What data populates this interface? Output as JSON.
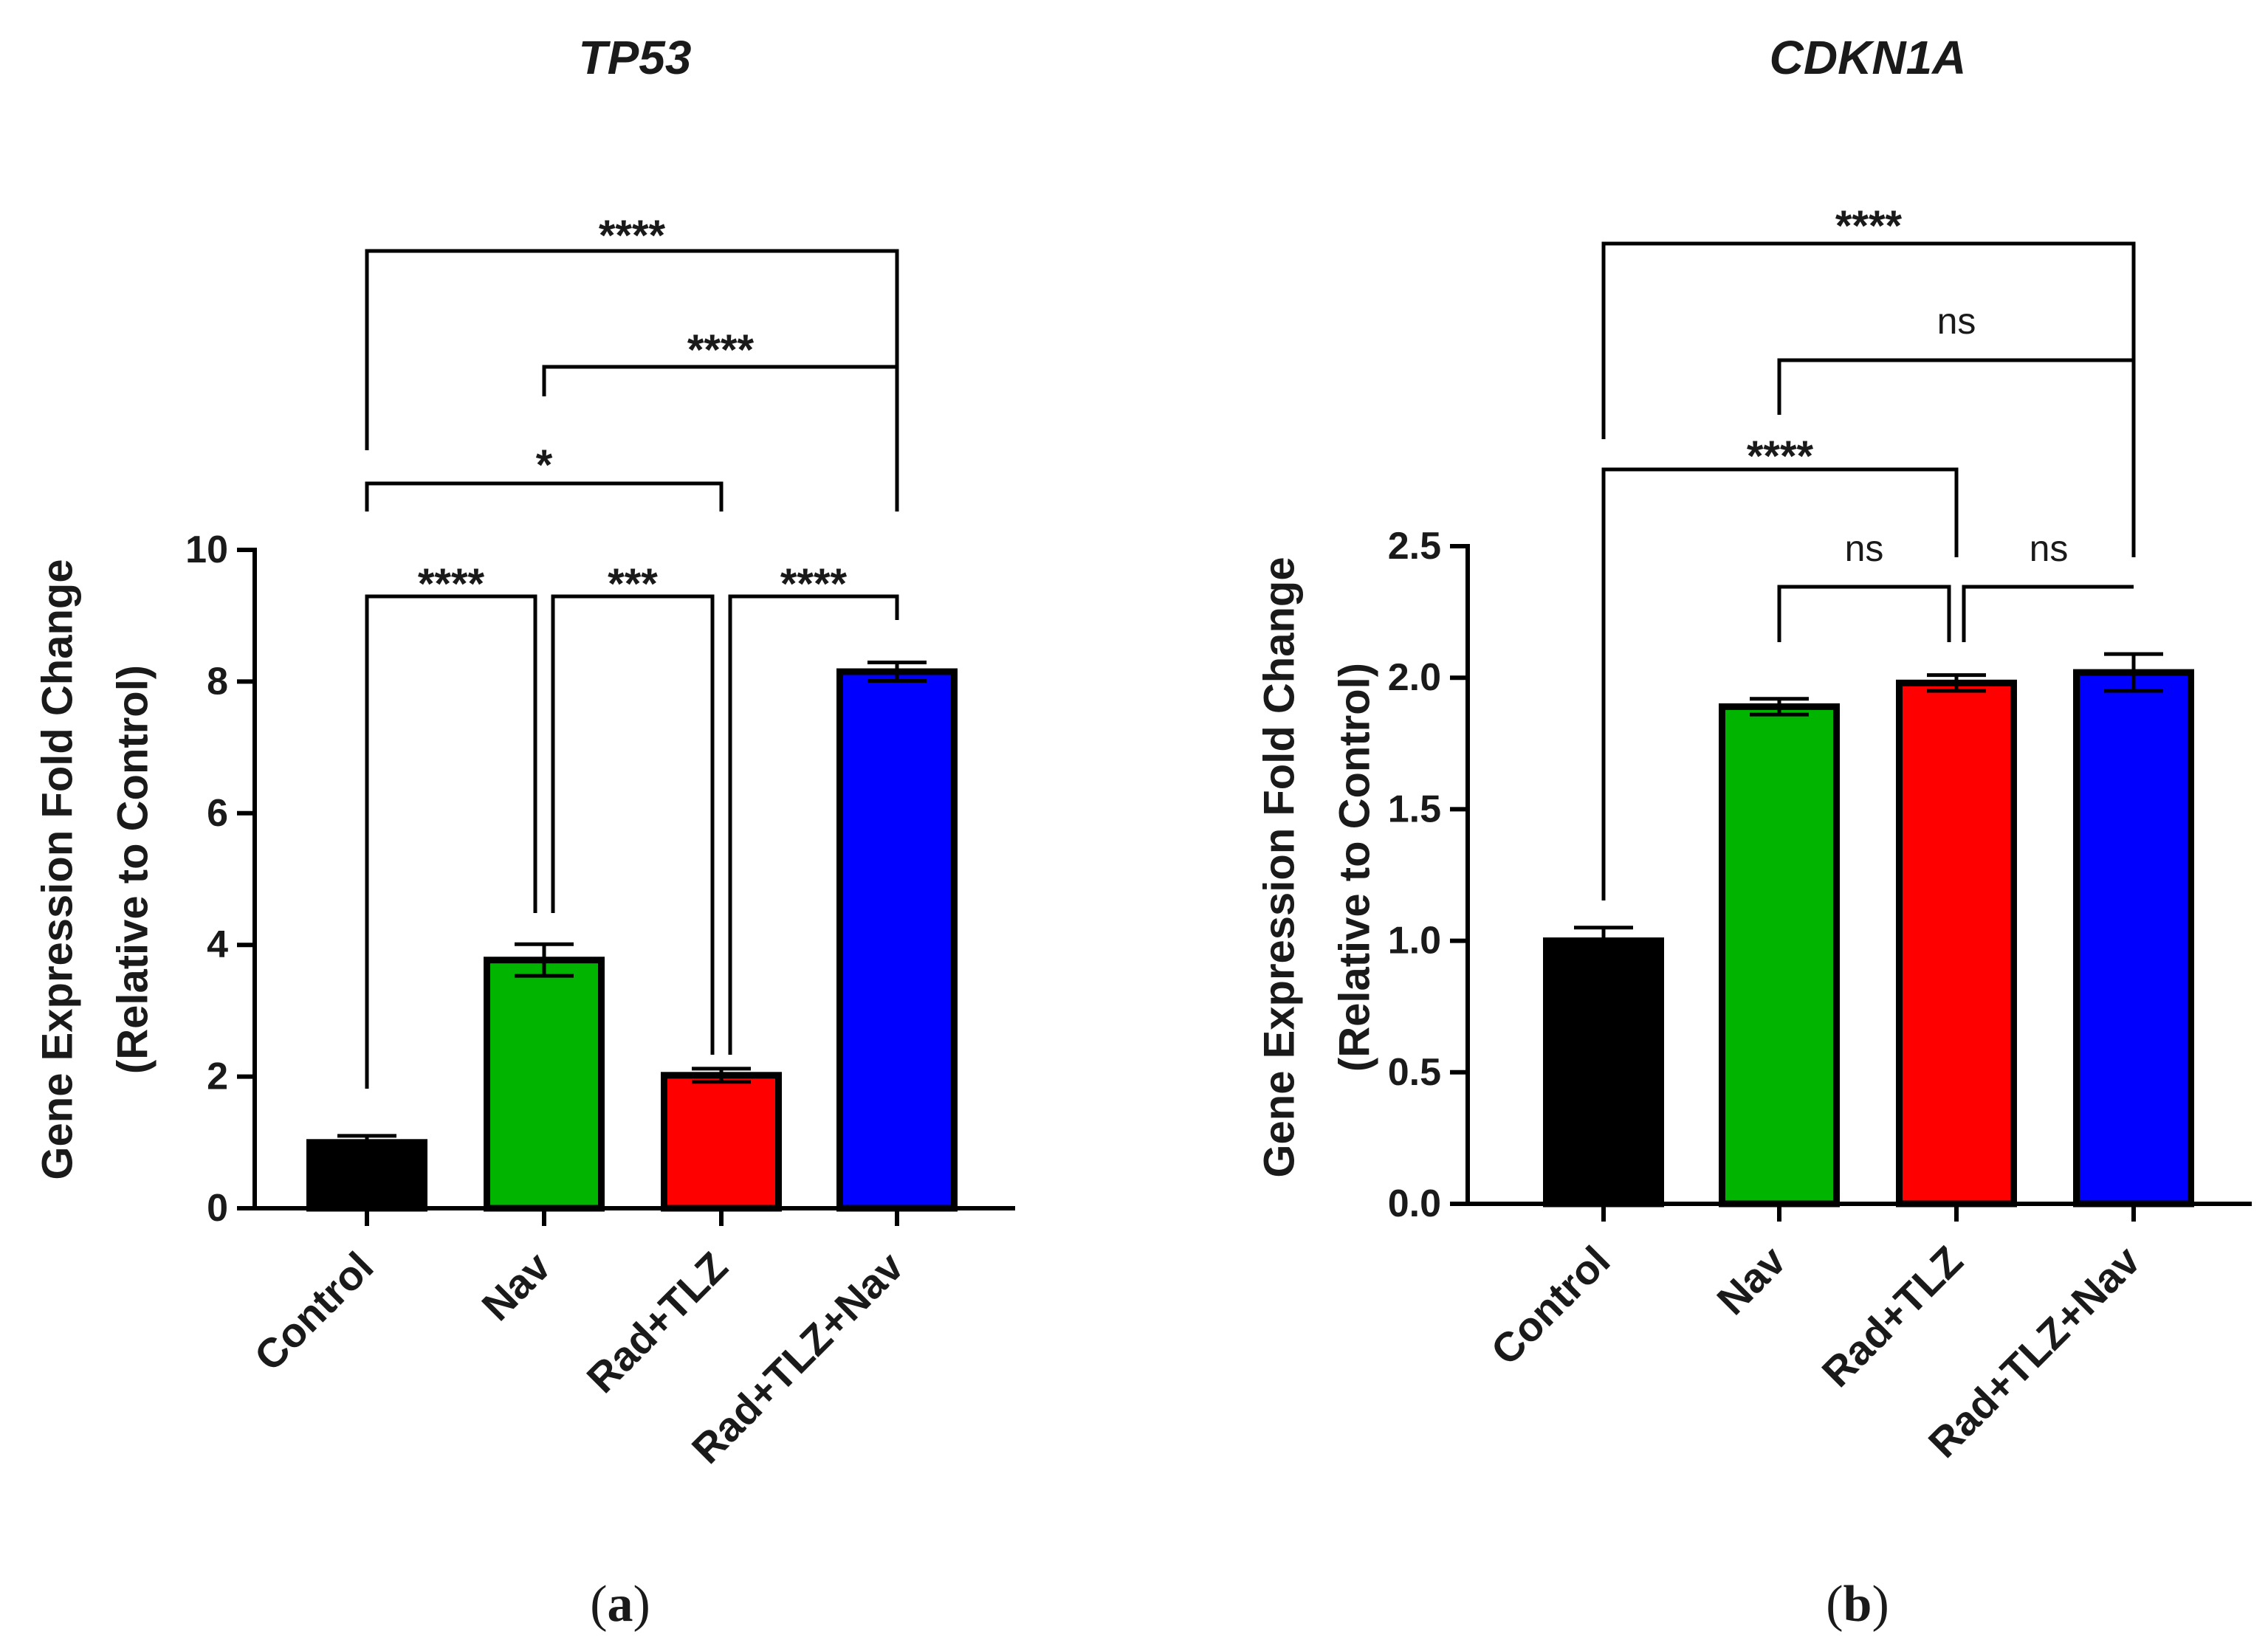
{
  "chart_data": [
    {
      "type": "bar",
      "panel": "a",
      "title": "TP53",
      "ylabel_line1": "Gene Expression Fold Change",
      "ylabel_line2": "(Relative to Control)",
      "xlabel": "",
      "ylim": [
        0,
        10
      ],
      "yticks": [
        0,
        2,
        4,
        6,
        8,
        10
      ],
      "ytick_labels": [
        "0",
        "2",
        "4",
        "6",
        "8",
        "10"
      ],
      "categories": [
        "Control",
        "Nav",
        "Rad+TLZ",
        "Rad+TLZ+Nav"
      ],
      "values": [
        1.0,
        3.77,
        2.02,
        8.15
      ],
      "errors": [
        0.1,
        0.24,
        0.1,
        0.14
      ],
      "colors": [
        "#000000",
        "#00b400",
        "#ff0000",
        "#0000ff"
      ],
      "comparisons": [
        {
          "from": 0,
          "to": 1,
          "level": 11.0,
          "label": "****"
        },
        {
          "from": 1,
          "to": 2,
          "level": 11.0,
          "label": "***"
        },
        {
          "from": 2,
          "to": 3,
          "level": 11.0,
          "label": "****"
        },
        {
          "from": 0,
          "to": 2,
          "level": 11.0,
          "label": "*"
        },
        {
          "from": 1,
          "to": 3,
          "level": 11.0,
          "label": "****"
        },
        {
          "from": 0,
          "to": 3,
          "level": 11.0,
          "label": "****"
        }
      ]
    },
    {
      "type": "bar",
      "panel": "b",
      "title": "CDKN1A",
      "ylabel_line1": "Gene Expression Fold Change",
      "ylabel_line2": "(Relative to Control)",
      "xlabel": "",
      "ylim": [
        0,
        2.5
      ],
      "yticks": [
        0,
        0.5,
        1.0,
        1.5,
        2.0,
        2.5
      ],
      "ytick_labels": [
        "0.0",
        "0.5",
        "1.0",
        "1.5",
        "2.0",
        "2.5"
      ],
      "categories": [
        "Control",
        "Nav",
        "Rad+TLZ",
        "Rad+TLZ+Nav"
      ],
      "values": [
        1.0,
        1.89,
        1.98,
        2.02
      ],
      "errors": [
        0.05,
        0.03,
        0.03,
        0.07
      ],
      "colors": [
        "#000000",
        "#00b400",
        "#ff0000",
        "#0000ff"
      ],
      "comparisons": [
        {
          "from": 1,
          "to": 2,
          "level": 2.2,
          "label": "ns"
        },
        {
          "from": 2,
          "to": 3,
          "level": 2.2,
          "label": "ns"
        },
        {
          "from": 0,
          "to": 2,
          "level": 2.2,
          "label": "****"
        },
        {
          "from": 1,
          "to": 3,
          "level": 2.2,
          "label": "ns"
        },
        {
          "from": 0,
          "to": 3,
          "level": 2.2,
          "label": "****"
        }
      ]
    }
  ],
  "panel_labels": [
    "a",
    "b"
  ]
}
